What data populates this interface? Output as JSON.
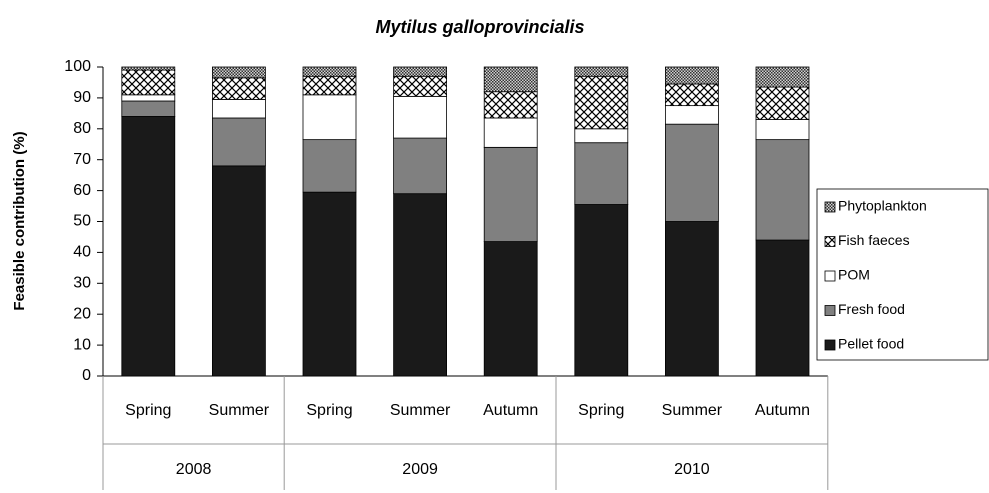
{
  "chart_data": {
    "type": "stacked_bar",
    "title": "Mytilus galloprovincialis",
    "y_label": "Feasible contribution (%)",
    "groups": [
      {
        "name": "2008",
        "categories": [
          "Spring",
          "Summer"
        ]
      },
      {
        "name": "2009",
        "categories": [
          "Spring",
          "Summer",
          "Autumn"
        ]
      },
      {
        "name": "2010",
        "categories": [
          "Spring",
          "Summer",
          "Autumn"
        ]
      }
    ],
    "series": [
      {
        "name": "Pellet food",
        "color": "#1a1a1a",
        "pattern": "solid",
        "values": [
          84,
          68,
          59.5,
          59,
          43.5,
          55.5,
          50,
          44
        ]
      },
      {
        "name": "Fresh food",
        "color": "#808080",
        "pattern": "solid",
        "values": [
          5,
          15.5,
          17,
          18,
          30.5,
          20,
          31.5,
          32.5
        ]
      },
      {
        "name": "POM",
        "color": "#ffffff",
        "pattern": "solid",
        "values": [
          2,
          6,
          14.5,
          13.5,
          9.5,
          4.5,
          6,
          6.5
        ]
      },
      {
        "name": "Fish faeces",
        "color": "#ffffff",
        "pattern": "crosshatch",
        "values": [
          8,
          7,
          6,
          6.5,
          8.5,
          17,
          7,
          10.5
        ]
      },
      {
        "name": "Phytoplankton",
        "color": "#999999",
        "pattern": "checker",
        "values": [
          1,
          3.5,
          3,
          3,
          8,
          3,
          5.5,
          6.5
        ]
      }
    ],
    "ylim": [
      0,
      100
    ],
    "yticks": [
      0,
      10,
      20,
      30,
      40,
      50,
      60,
      70,
      80,
      90,
      100
    ],
    "legend": "right"
  }
}
